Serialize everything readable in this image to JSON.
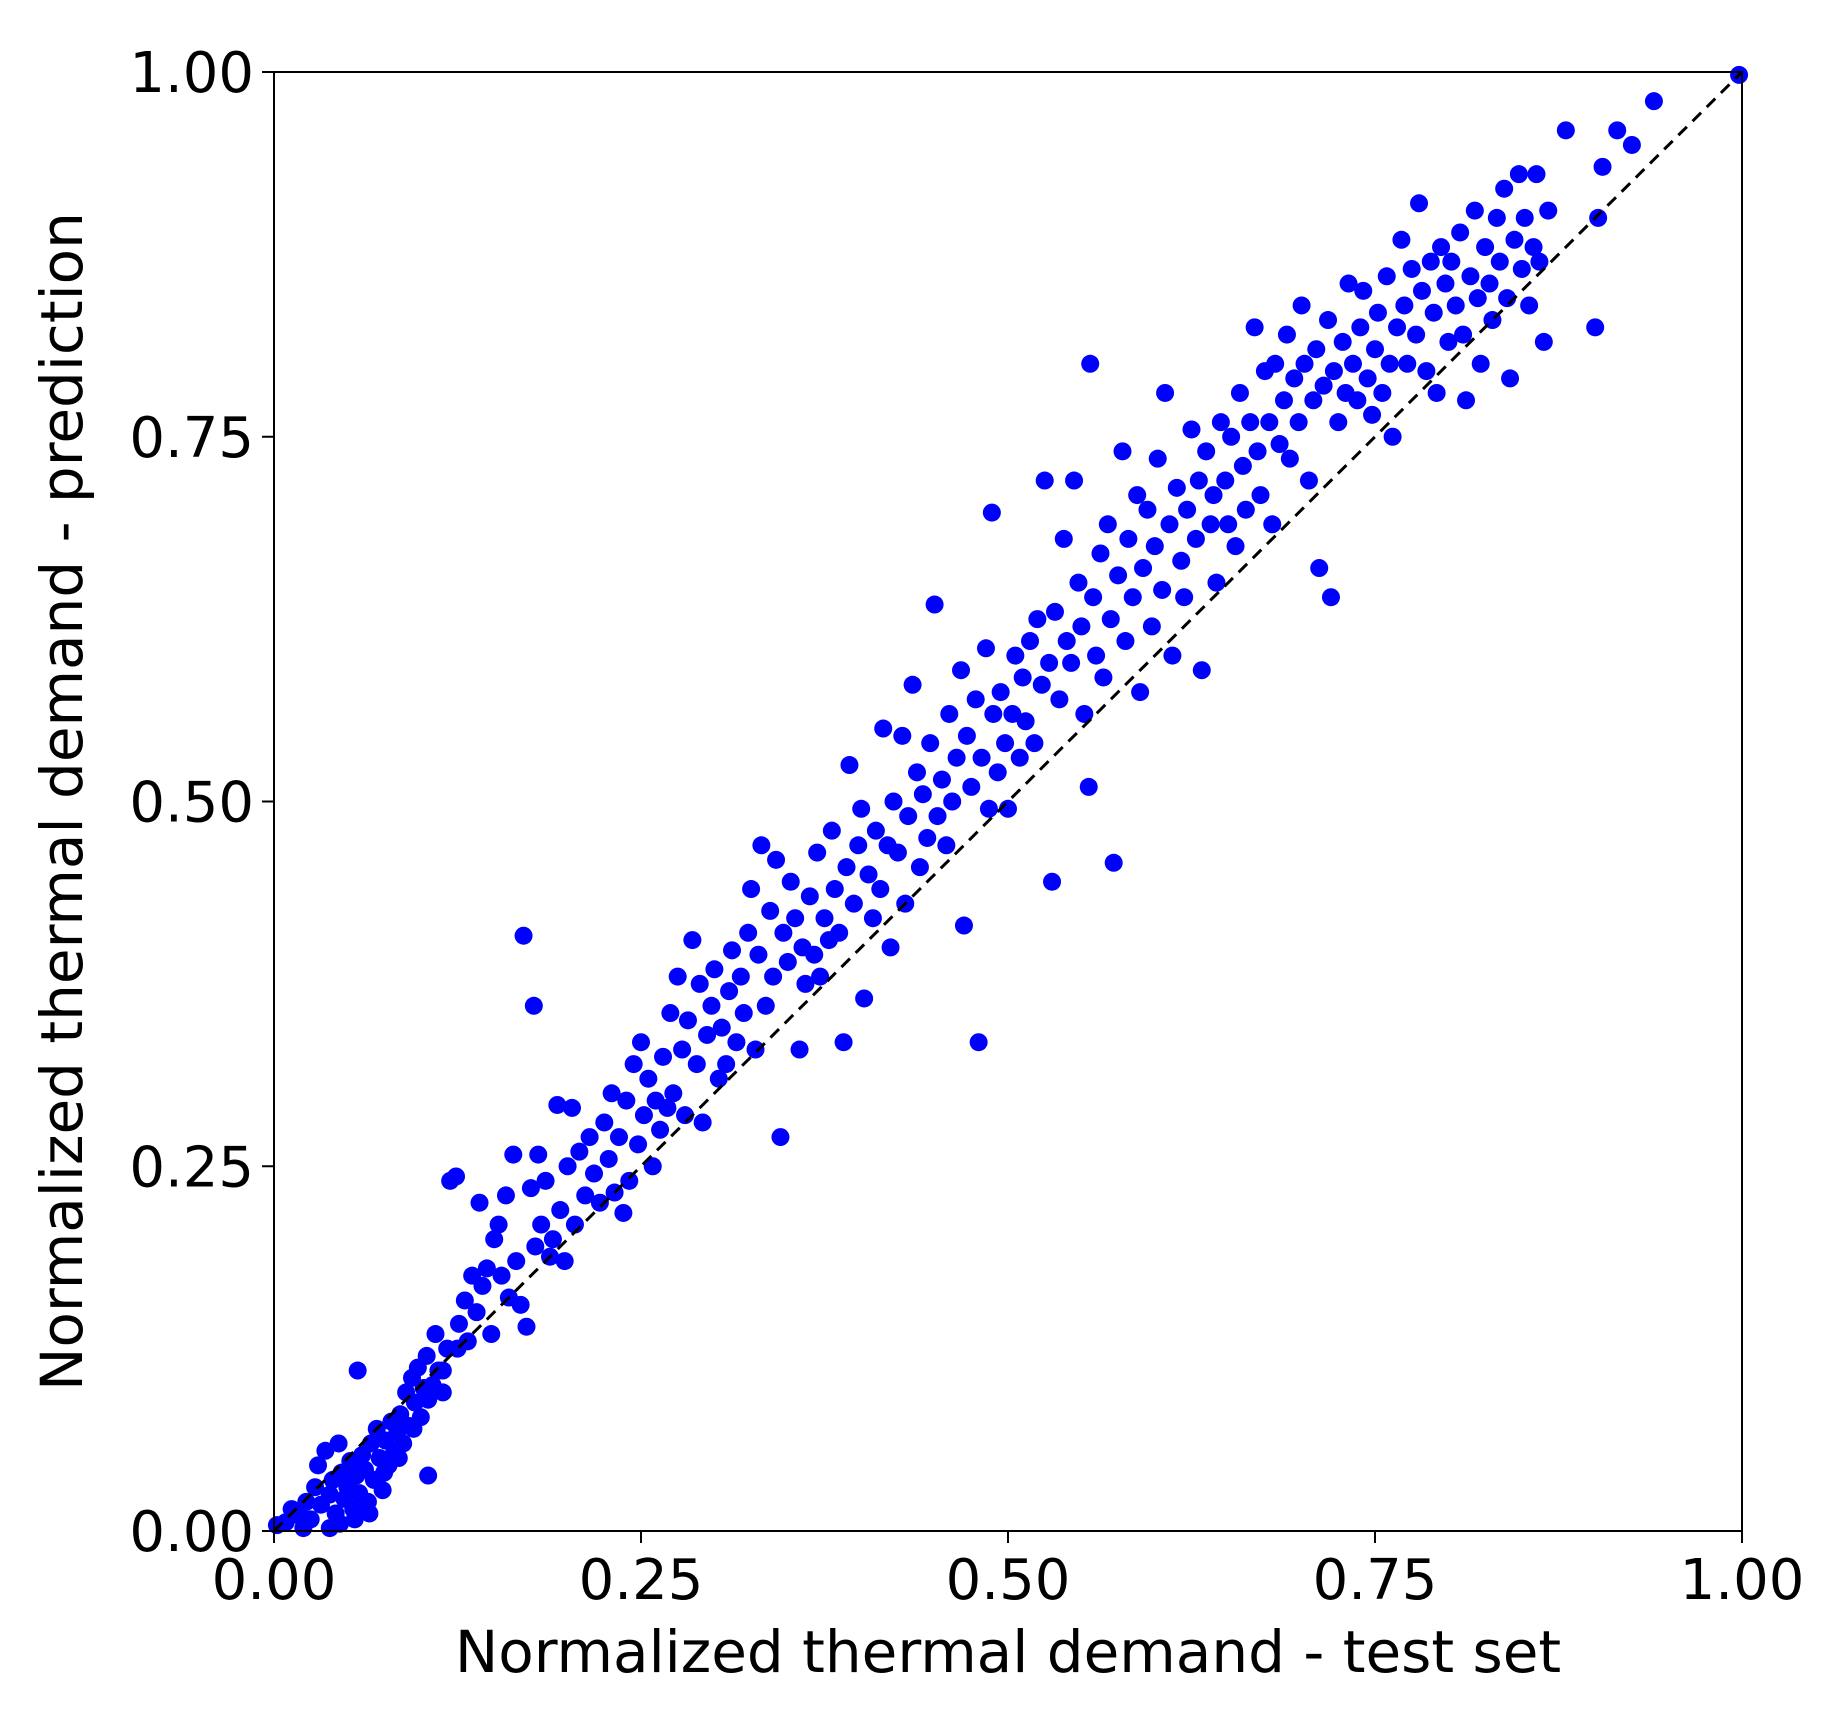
{
  "chart_data": {
    "type": "scatter",
    "title": "",
    "xlabel": "Normalized thermal demand - test set",
    "ylabel": "Normalized thermal demand - prediction",
    "xlim": [
      0.0,
      1.0
    ],
    "ylim": [
      0.0,
      1.0
    ],
    "xticks": [
      "0.00",
      "0.25",
      "0.50",
      "0.75",
      "1.00"
    ],
    "yticks": [
      "0.00",
      "0.25",
      "0.50",
      "0.75",
      "1.00"
    ],
    "grid": false,
    "legend": null,
    "marker_color": "#0000ff",
    "reference_line": {
      "style": "dashed",
      "color": "#000000",
      "from": [
        0,
        0
      ],
      "to": [
        1,
        1
      ]
    },
    "points": [
      [
        0.002,
        0.004
      ],
      [
        0.008,
        0.006
      ],
      [
        0.012,
        0.015
      ],
      [
        0.018,
        0.01
      ],
      [
        0.022,
        0.02
      ],
      [
        0.025,
        0.008
      ],
      [
        0.028,
        0.03
      ],
      [
        0.03,
        0.045
      ],
      [
        0.032,
        0.018
      ],
      [
        0.035,
        0.055
      ],
      [
        0.038,
        0.025
      ],
      [
        0.04,
        0.035
      ],
      [
        0.042,
        0.012
      ],
      [
        0.044,
        0.06
      ],
      [
        0.046,
        0.04
      ],
      [
        0.048,
        0.022
      ],
      [
        0.05,
        0.03
      ],
      [
        0.052,
        0.048
      ],
      [
        0.054,
        0.015
      ],
      [
        0.056,
        0.038
      ],
      [
        0.057,
        0.11
      ],
      [
        0.058,
        0.026
      ],
      [
        0.06,
        0.052
      ],
      [
        0.062,
        0.042
      ],
      [
        0.064,
        0.02
      ],
      [
        0.066,
        0.06
      ],
      [
        0.068,
        0.035
      ],
      [
        0.07,
        0.07
      ],
      [
        0.072,
        0.05
      ],
      [
        0.074,
        0.028
      ],
      [
        0.076,
        0.062
      ],
      [
        0.078,
        0.045
      ],
      [
        0.08,
        0.075
      ],
      [
        0.082,
        0.055
      ],
      [
        0.084,
        0.068
      ],
      [
        0.086,
        0.08
      ],
      [
        0.088,
        0.06
      ],
      [
        0.09,
        0.095
      ],
      [
        0.092,
        0.072
      ],
      [
        0.094,
        0.105
      ],
      [
        0.096,
        0.088
      ],
      [
        0.098,
        0.112
      ],
      [
        0.1,
        0.078
      ],
      [
        0.102,
        0.098
      ],
      [
        0.104,
        0.12
      ],
      [
        0.105,
        0.038
      ],
      [
        0.108,
        0.1
      ],
      [
        0.11,
        0.135
      ],
      [
        0.112,
        0.11
      ],
      [
        0.115,
        0.095
      ],
      [
        0.118,
        0.125
      ],
      [
        0.12,
        0.24
      ],
      [
        0.124,
        0.243
      ],
      [
        0.126,
        0.142
      ],
      [
        0.13,
        0.158
      ],
      [
        0.132,
        0.13
      ],
      [
        0.135,
        0.175
      ],
      [
        0.138,
        0.15
      ],
      [
        0.14,
        0.225
      ],
      [
        0.142,
        0.168
      ],
      [
        0.145,
        0.18
      ],
      [
        0.148,
        0.135
      ],
      [
        0.15,
        0.2
      ],
      [
        0.153,
        0.21
      ],
      [
        0.155,
        0.175
      ],
      [
        0.158,
        0.23
      ],
      [
        0.16,
        0.16
      ],
      [
        0.163,
        0.258
      ],
      [
        0.165,
        0.185
      ],
      [
        0.168,
        0.155
      ],
      [
        0.17,
        0.408
      ],
      [
        0.172,
        0.14
      ],
      [
        0.175,
        0.235
      ],
      [
        0.177,
        0.36
      ],
      [
        0.178,
        0.195
      ],
      [
        0.18,
        0.258
      ],
      [
        0.182,
        0.21
      ],
      [
        0.185,
        0.24
      ],
      [
        0.188,
        0.188
      ],
      [
        0.19,
        0.2
      ],
      [
        0.193,
        0.292
      ],
      [
        0.195,
        0.22
      ],
      [
        0.198,
        0.185
      ],
      [
        0.2,
        0.25
      ],
      [
        0.203,
        0.29
      ],
      [
        0.205,
        0.21
      ],
      [
        0.208,
        0.26
      ],
      [
        0.212,
        0.23
      ],
      [
        0.215,
        0.27
      ],
      [
        0.218,
        0.245
      ],
      [
        0.222,
        0.225
      ],
      [
        0.225,
        0.28
      ],
      [
        0.228,
        0.255
      ],
      [
        0.23,
        0.3
      ],
      [
        0.232,
        0.232
      ],
      [
        0.235,
        0.27
      ],
      [
        0.238,
        0.218
      ],
      [
        0.24,
        0.295
      ],
      [
        0.242,
        0.24
      ],
      [
        0.245,
        0.32
      ],
      [
        0.248,
        0.265
      ],
      [
        0.25,
        0.335
      ],
      [
        0.252,
        0.285
      ],
      [
        0.255,
        0.31
      ],
      [
        0.258,
        0.25
      ],
      [
        0.26,
        0.295
      ],
      [
        0.263,
        0.275
      ],
      [
        0.265,
        0.325
      ],
      [
        0.268,
        0.29
      ],
      [
        0.27,
        0.355
      ],
      [
        0.272,
        0.3
      ],
      [
        0.275,
        0.38
      ],
      [
        0.278,
        0.33
      ],
      [
        0.28,
        0.285
      ],
      [
        0.282,
        0.35
      ],
      [
        0.285,
        0.405
      ],
      [
        0.288,
        0.32
      ],
      [
        0.29,
        0.375
      ],
      [
        0.292,
        0.28
      ],
      [
        0.295,
        0.34
      ],
      [
        0.298,
        0.36
      ],
      [
        0.3,
        0.385
      ],
      [
        0.303,
        0.31
      ],
      [
        0.305,
        0.345
      ],
      [
        0.308,
        0.32
      ],
      [
        0.31,
        0.37
      ],
      [
        0.312,
        0.398
      ],
      [
        0.315,
        0.335
      ],
      [
        0.318,
        0.38
      ],
      [
        0.32,
        0.355
      ],
      [
        0.323,
        0.41
      ],
      [
        0.325,
        0.44
      ],
      [
        0.328,
        0.33
      ],
      [
        0.33,
        0.395
      ],
      [
        0.332,
        0.47
      ],
      [
        0.335,
        0.36
      ],
      [
        0.338,
        0.425
      ],
      [
        0.34,
        0.38
      ],
      [
        0.342,
        0.46
      ],
      [
        0.345,
        0.27
      ],
      [
        0.347,
        0.41
      ],
      [
        0.35,
        0.39
      ],
      [
        0.352,
        0.445
      ],
      [
        0.355,
        0.42
      ],
      [
        0.358,
        0.33
      ],
      [
        0.36,
        0.4
      ],
      [
        0.362,
        0.375
      ],
      [
        0.365,
        0.435
      ],
      [
        0.368,
        0.395
      ],
      [
        0.37,
        0.465
      ],
      [
        0.372,
        0.38
      ],
      [
        0.375,
        0.42
      ],
      [
        0.378,
        0.405
      ],
      [
        0.38,
        0.48
      ],
      [
        0.382,
        0.44
      ],
      [
        0.385,
        0.41
      ],
      [
        0.388,
        0.335
      ],
      [
        0.39,
        0.455
      ],
      [
        0.392,
        0.525
      ],
      [
        0.395,
        0.43
      ],
      [
        0.398,
        0.47
      ],
      [
        0.4,
        0.495
      ],
      [
        0.402,
        0.365
      ],
      [
        0.405,
        0.45
      ],
      [
        0.408,
        0.42
      ],
      [
        0.41,
        0.48
      ],
      [
        0.413,
        0.44
      ],
      [
        0.415,
        0.55
      ],
      [
        0.418,
        0.47
      ],
      [
        0.42,
        0.4
      ],
      [
        0.422,
        0.5
      ],
      [
        0.425,
        0.465
      ],
      [
        0.428,
        0.545
      ],
      [
        0.43,
        0.43
      ],
      [
        0.432,
        0.49
      ],
      [
        0.435,
        0.58
      ],
      [
        0.438,
        0.52
      ],
      [
        0.44,
        0.455
      ],
      [
        0.442,
        0.505
      ],
      [
        0.445,
        0.475
      ],
      [
        0.447,
        0.54
      ],
      [
        0.45,
        0.635
      ],
      [
        0.452,
        0.49
      ],
      [
        0.455,
        0.515
      ],
      [
        0.458,
        0.47
      ],
      [
        0.46,
        0.56
      ],
      [
        0.462,
        0.5
      ],
      [
        0.465,
        0.53
      ],
      [
        0.468,
        0.59
      ],
      [
        0.47,
        0.415
      ],
      [
        0.472,
        0.545
      ],
      [
        0.475,
        0.51
      ],
      [
        0.478,
        0.57
      ],
      [
        0.48,
        0.335
      ],
      [
        0.482,
        0.53
      ],
      [
        0.485,
        0.605
      ],
      [
        0.487,
        0.495
      ],
      [
        0.489,
        0.698
      ],
      [
        0.49,
        0.56
      ],
      [
        0.493,
        0.52
      ],
      [
        0.495,
        0.575
      ],
      [
        0.498,
        0.54
      ],
      [
        0.5,
        0.495
      ],
      [
        0.503,
        0.56
      ],
      [
        0.505,
        0.6
      ],
      [
        0.508,
        0.53
      ],
      [
        0.51,
        0.585
      ],
      [
        0.512,
        0.555
      ],
      [
        0.515,
        0.61
      ],
      [
        0.518,
        0.54
      ],
      [
        0.52,
        0.625
      ],
      [
        0.523,
        0.58
      ],
      [
        0.525,
        0.72
      ],
      [
        0.528,
        0.595
      ],
      [
        0.53,
        0.445
      ],
      [
        0.532,
        0.63
      ],
      [
        0.535,
        0.57
      ],
      [
        0.538,
        0.68
      ],
      [
        0.54,
        0.61
      ],
      [
        0.543,
        0.595
      ],
      [
        0.545,
        0.72
      ],
      [
        0.548,
        0.65
      ],
      [
        0.55,
        0.62
      ],
      [
        0.552,
        0.56
      ],
      [
        0.555,
        0.51
      ],
      [
        0.556,
        0.8
      ],
      [
        0.558,
        0.64
      ],
      [
        0.56,
        0.6
      ],
      [
        0.563,
        0.67
      ],
      [
        0.565,
        0.585
      ],
      [
        0.568,
        0.69
      ],
      [
        0.57,
        0.625
      ],
      [
        0.572,
        0.458
      ],
      [
        0.575,
        0.655
      ],
      [
        0.578,
        0.74
      ],
      [
        0.58,
        0.61
      ],
      [
        0.582,
        0.68
      ],
      [
        0.585,
        0.64
      ],
      [
        0.588,
        0.71
      ],
      [
        0.59,
        0.575
      ],
      [
        0.592,
        0.66
      ],
      [
        0.595,
        0.7
      ],
      [
        0.598,
        0.62
      ],
      [
        0.6,
        0.675
      ],
      [
        0.602,
        0.735
      ],
      [
        0.605,
        0.645
      ],
      [
        0.607,
        0.78
      ],
      [
        0.61,
        0.69
      ],
      [
        0.612,
        0.6
      ],
      [
        0.615,
        0.715
      ],
      [
        0.618,
        0.665
      ],
      [
        0.62,
        0.64
      ],
      [
        0.622,
        0.7
      ],
      [
        0.625,
        0.755
      ],
      [
        0.628,
        0.68
      ],
      [
        0.63,
        0.72
      ],
      [
        0.632,
        0.59
      ],
      [
        0.635,
        0.74
      ],
      [
        0.638,
        0.69
      ],
      [
        0.64,
        0.71
      ],
      [
        0.642,
        0.65
      ],
      [
        0.645,
        0.76
      ],
      [
        0.648,
        0.72
      ],
      [
        0.65,
        0.69
      ],
      [
        0.652,
        0.75
      ],
      [
        0.655,
        0.675
      ],
      [
        0.658,
        0.78
      ],
      [
        0.66,
        0.73
      ],
      [
        0.662,
        0.7
      ],
      [
        0.665,
        0.76
      ],
      [
        0.668,
        0.825
      ],
      [
        0.67,
        0.74
      ],
      [
        0.672,
        0.71
      ],
      [
        0.675,
        0.795
      ],
      [
        0.678,
        0.76
      ],
      [
        0.68,
        0.69
      ],
      [
        0.682,
        0.8
      ],
      [
        0.685,
        0.745
      ],
      [
        0.688,
        0.775
      ],
      [
        0.69,
        0.82
      ],
      [
        0.692,
        0.735
      ],
      [
        0.695,
        0.79
      ],
      [
        0.698,
        0.76
      ],
      [
        0.7,
        0.84
      ],
      [
        0.702,
        0.8
      ],
      [
        0.705,
        0.72
      ],
      [
        0.708,
        0.775
      ],
      [
        0.71,
        0.81
      ],
      [
        0.712,
        0.66
      ],
      [
        0.715,
        0.785
      ],
      [
        0.718,
        0.83
      ],
      [
        0.72,
        0.64
      ],
      [
        0.722,
        0.795
      ],
      [
        0.725,
        0.76
      ],
      [
        0.728,
        0.815
      ],
      [
        0.73,
        0.78
      ],
      [
        0.732,
        0.855
      ],
      [
        0.735,
        0.8
      ],
      [
        0.738,
        0.775
      ],
      [
        0.74,
        0.825
      ],
      [
        0.742,
        0.85
      ],
      [
        0.745,
        0.79
      ],
      [
        0.748,
        0.765
      ],
      [
        0.75,
        0.81
      ],
      [
        0.752,
        0.835
      ],
      [
        0.755,
        0.78
      ],
      [
        0.758,
        0.86
      ],
      [
        0.76,
        0.8
      ],
      [
        0.762,
        0.75
      ],
      [
        0.765,
        0.825
      ],
      [
        0.768,
        0.885
      ],
      [
        0.77,
        0.84
      ],
      [
        0.772,
        0.8
      ],
      [
        0.775,
        0.865
      ],
      [
        0.778,
        0.82
      ],
      [
        0.78,
        0.91
      ],
      [
        0.782,
        0.85
      ],
      [
        0.785,
        0.795
      ],
      [
        0.788,
        0.87
      ],
      [
        0.79,
        0.835
      ],
      [
        0.792,
        0.78
      ],
      [
        0.795,
        0.88
      ],
      [
        0.798,
        0.855
      ],
      [
        0.8,
        0.815
      ],
      [
        0.802,
        0.87
      ],
      [
        0.805,
        0.84
      ],
      [
        0.808,
        0.89
      ],
      [
        0.81,
        0.82
      ],
      [
        0.812,
        0.775
      ],
      [
        0.815,
        0.86
      ],
      [
        0.818,
        0.905
      ],
      [
        0.82,
        0.845
      ],
      [
        0.822,
        0.8
      ],
      [
        0.825,
        0.88
      ],
      [
        0.828,
        0.855
      ],
      [
        0.83,
        0.83
      ],
      [
        0.833,
        0.9
      ],
      [
        0.835,
        0.87
      ],
      [
        0.838,
        0.92
      ],
      [
        0.84,
        0.845
      ],
      [
        0.842,
        0.79
      ],
      [
        0.845,
        0.885
      ],
      [
        0.848,
        0.93
      ],
      [
        0.85,
        0.865
      ],
      [
        0.852,
        0.9
      ],
      [
        0.855,
        0.84
      ],
      [
        0.858,
        0.88
      ],
      [
        0.86,
        0.93
      ],
      [
        0.862,
        0.87
      ],
      [
        0.865,
        0.815
      ],
      [
        0.868,
        0.905
      ],
      [
        0.88,
        0.96
      ],
      [
        0.9,
        0.825
      ],
      [
        0.902,
        0.9
      ],
      [
        0.905,
        0.935
      ],
      [
        0.915,
        0.96
      ],
      [
        0.925,
        0.95
      ],
      [
        0.94,
        0.98
      ],
      [
        0.998,
        0.998
      ],
      [
        0.055,
        0.008
      ],
      [
        0.045,
        0.005
      ],
      [
        0.038,
        0.002
      ],
      [
        0.02,
        0.002
      ],
      [
        0.065,
        0.012
      ],
      [
        0.075,
        0.04
      ],
      [
        0.085,
        0.05
      ],
      [
        0.095,
        0.07
      ],
      [
        0.105,
        0.09
      ],
      [
        0.115,
        0.11
      ],
      [
        0.125,
        0.125
      ]
    ]
  }
}
